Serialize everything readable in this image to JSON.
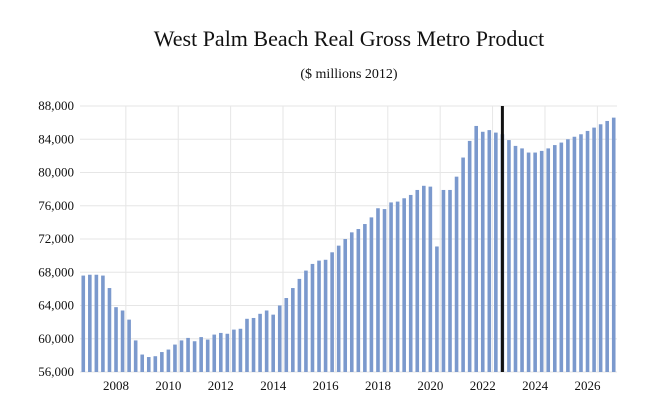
{
  "chart_data": {
    "type": "bar",
    "title": "West Palm Beach Real Gross Metro Product",
    "subtitle": "($ millions 2012)",
    "xlabel": "",
    "ylabel": "",
    "ylim": [
      56000,
      88000
    ],
    "y_ticks": [
      56000,
      60000,
      64000,
      68000,
      72000,
      76000,
      80000,
      84000,
      88000
    ],
    "y_tick_labels": [
      "56,000",
      "60,000",
      "64,000",
      "68,000",
      "72,000",
      "76,000",
      "80,000",
      "84,000",
      "88,000"
    ],
    "x_tick_labels": [
      "2008",
      "2010",
      "2012",
      "2014",
      "2016",
      "2018",
      "2020",
      "2022",
      "2024",
      "2026"
    ],
    "start_quarter": "2006Q2",
    "frequency": "quarterly",
    "grid": true,
    "bar_color": "#7b99cd",
    "marker_color": "#111111",
    "forecast_marker": "2022Q2",
    "values": [
      67600,
      67700,
      67700,
      67600,
      66100,
      63800,
      63400,
      62300,
      59800,
      58100,
      57800,
      57900,
      58400,
      58700,
      59300,
      59800,
      60100,
      59700,
      60200,
      59900,
      60500,
      60700,
      60600,
      61100,
      61200,
      62400,
      62500,
      63000,
      63400,
      62900,
      64000,
      64900,
      66100,
      67200,
      68200,
      69000,
      69400,
      69500,
      70400,
      71200,
      72000,
      72800,
      73200,
      73800,
      74600,
      75700,
      75600,
      76400,
      76500,
      76900,
      77300,
      77900,
      78400,
      78300,
      71100,
      77900,
      77900,
      79500,
      81800,
      83800,
      85600,
      84900,
      85100,
      84800,
      84600,
      83900,
      83200,
      82900,
      82400,
      82400,
      82600,
      82900,
      83300,
      83600,
      84000,
      84300,
      84600,
      85000,
      85400,
      85800,
      86200,
      86600
    ]
  }
}
